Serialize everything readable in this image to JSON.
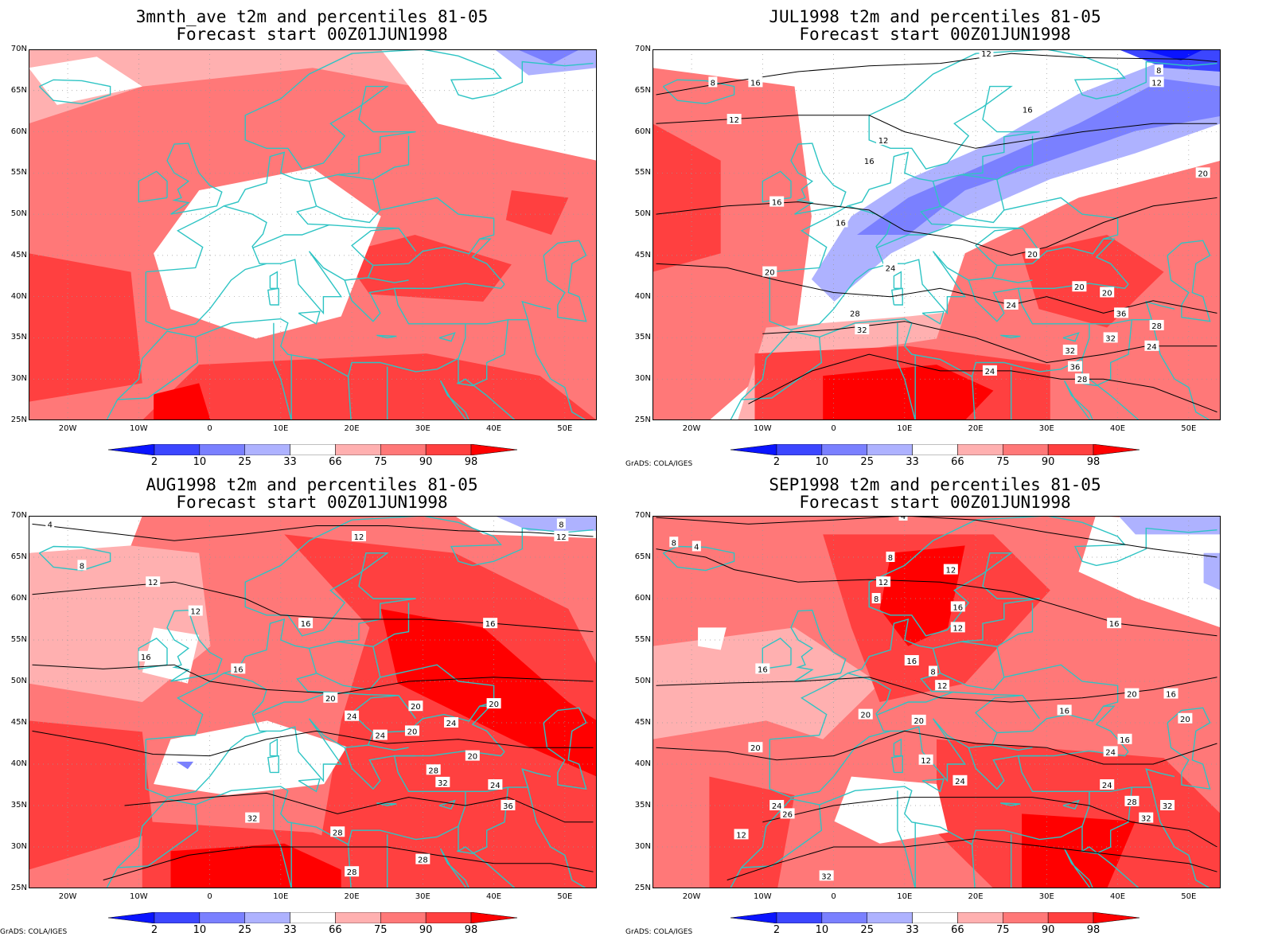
{
  "panels": [
    {
      "id": "p1",
      "title_line1": "3mnth_ave t2m and percentiles 81-05",
      "title_line2": "Forecast start 00Z01JUN1998",
      "credit": ""
    },
    {
      "id": "p2",
      "title_line1": "JUL1998 t2m and percentiles 81-05",
      "title_line2": "Forecast start 00Z01JUN1998",
      "credit": "GrADS: COLA/IGES"
    },
    {
      "id": "p3",
      "title_line1": "AUG1998 t2m and percentiles 81-05",
      "title_line2": "Forecast start 00Z01JUN1998",
      "credit": "GrADS: COLA/IGES"
    },
    {
      "id": "p4",
      "title_line1": "SEP1998 t2m and percentiles 81-05",
      "title_line2": "Forecast start 00Z01JUN1998",
      "credit": "GrADS: COLA/IGES"
    }
  ],
  "lat_labels": [
    "70N",
    "65N",
    "60N",
    "55N",
    "50N",
    "45N",
    "40N",
    "35N",
    "30N",
    "25N"
  ],
  "lon_labels": [
    "20W",
    "10W",
    "0",
    "10E",
    "20E",
    "30E",
    "40E",
    "50E"
  ],
  "colorbar": {
    "labels": [
      "2",
      "10",
      "25",
      "33",
      "66",
      "75",
      "90",
      "98"
    ],
    "colors": {
      "below_2": "#0a14ff",
      "b2_10": "#3c46ff",
      "b10_25": "#7a80ff",
      "b25_33": "#aeb2ff",
      "b33_66": "#ffffff",
      "b66_75": "#ffb0b0",
      "b75_90": "#ff7878",
      "b90_98": "#ff4040",
      "above_98": "#ff0000"
    }
  },
  "coastline_color": "#2ec4c4",
  "contour_labels": {
    "p2": [
      "12",
      "8",
      "12",
      "16",
      "12",
      "16",
      "16",
      "16",
      "20",
      "20",
      "20",
      "24",
      "24",
      "28",
      "32",
      "36",
      "28",
      "32",
      "24",
      "20",
      "32",
      "24",
      "36",
      "28",
      "8",
      "12",
      "16",
      "20"
    ],
    "p3": [
      "12",
      "8",
      "12",
      "12",
      "16",
      "16",
      "16",
      "16",
      "20",
      "20",
      "20",
      "24",
      "24",
      "24",
      "20",
      "20",
      "28",
      "32",
      "24",
      "36",
      "28",
      "32",
      "28",
      "28",
      "8",
      "12",
      "4"
    ],
    "p4": [
      "4",
      "8",
      "4",
      "8",
      "12",
      "8",
      "12",
      "12",
      "16",
      "16",
      "12",
      "16",
      "16",
      "20",
      "20",
      "20",
      "16",
      "20",
      "24",
      "24",
      "28",
      "32",
      "32",
      "24",
      "32",
      "24",
      "26",
      "12",
      "8",
      "12",
      "16",
      "20",
      "16"
    ]
  }
}
